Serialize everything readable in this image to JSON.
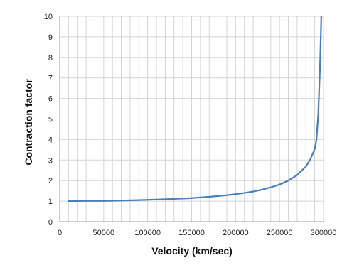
{
  "chart_data": {
    "type": "line",
    "title": "",
    "xlabel": "Velocity (km/sec)",
    "ylabel": "Contraction factor",
    "xlim": [
      0,
      300000
    ],
    "ylim": [
      0,
      10
    ],
    "x_ticks": [
      0,
      50000,
      100000,
      150000,
      200000,
      250000,
      300000
    ],
    "y_ticks": [
      0,
      1,
      2,
      3,
      4,
      5,
      6,
      7,
      8,
      9,
      10
    ],
    "x_minor_step": 10000,
    "grid": true,
    "legend": "none",
    "series_color": "#4a7ebb",
    "series": [
      {
        "x": [
          10000,
          30000,
          50000,
          70000,
          90000,
          110000,
          130000,
          150000,
          170000,
          190000,
          200000,
          210000,
          220000,
          230000,
          240000,
          250000,
          260000,
          270000,
          280000,
          285000,
          290000,
          292000,
          294000,
          296000,
          297500
        ],
        "y": [
          1.0,
          1.01,
          1.01,
          1.03,
          1.05,
          1.08,
          1.11,
          1.15,
          1.21,
          1.29,
          1.34,
          1.4,
          1.47,
          1.56,
          1.67,
          1.81,
          2.0,
          2.27,
          2.69,
          3.04,
          3.53,
          4.0,
          5.2,
          7.5,
          10
        ]
      }
    ]
  }
}
